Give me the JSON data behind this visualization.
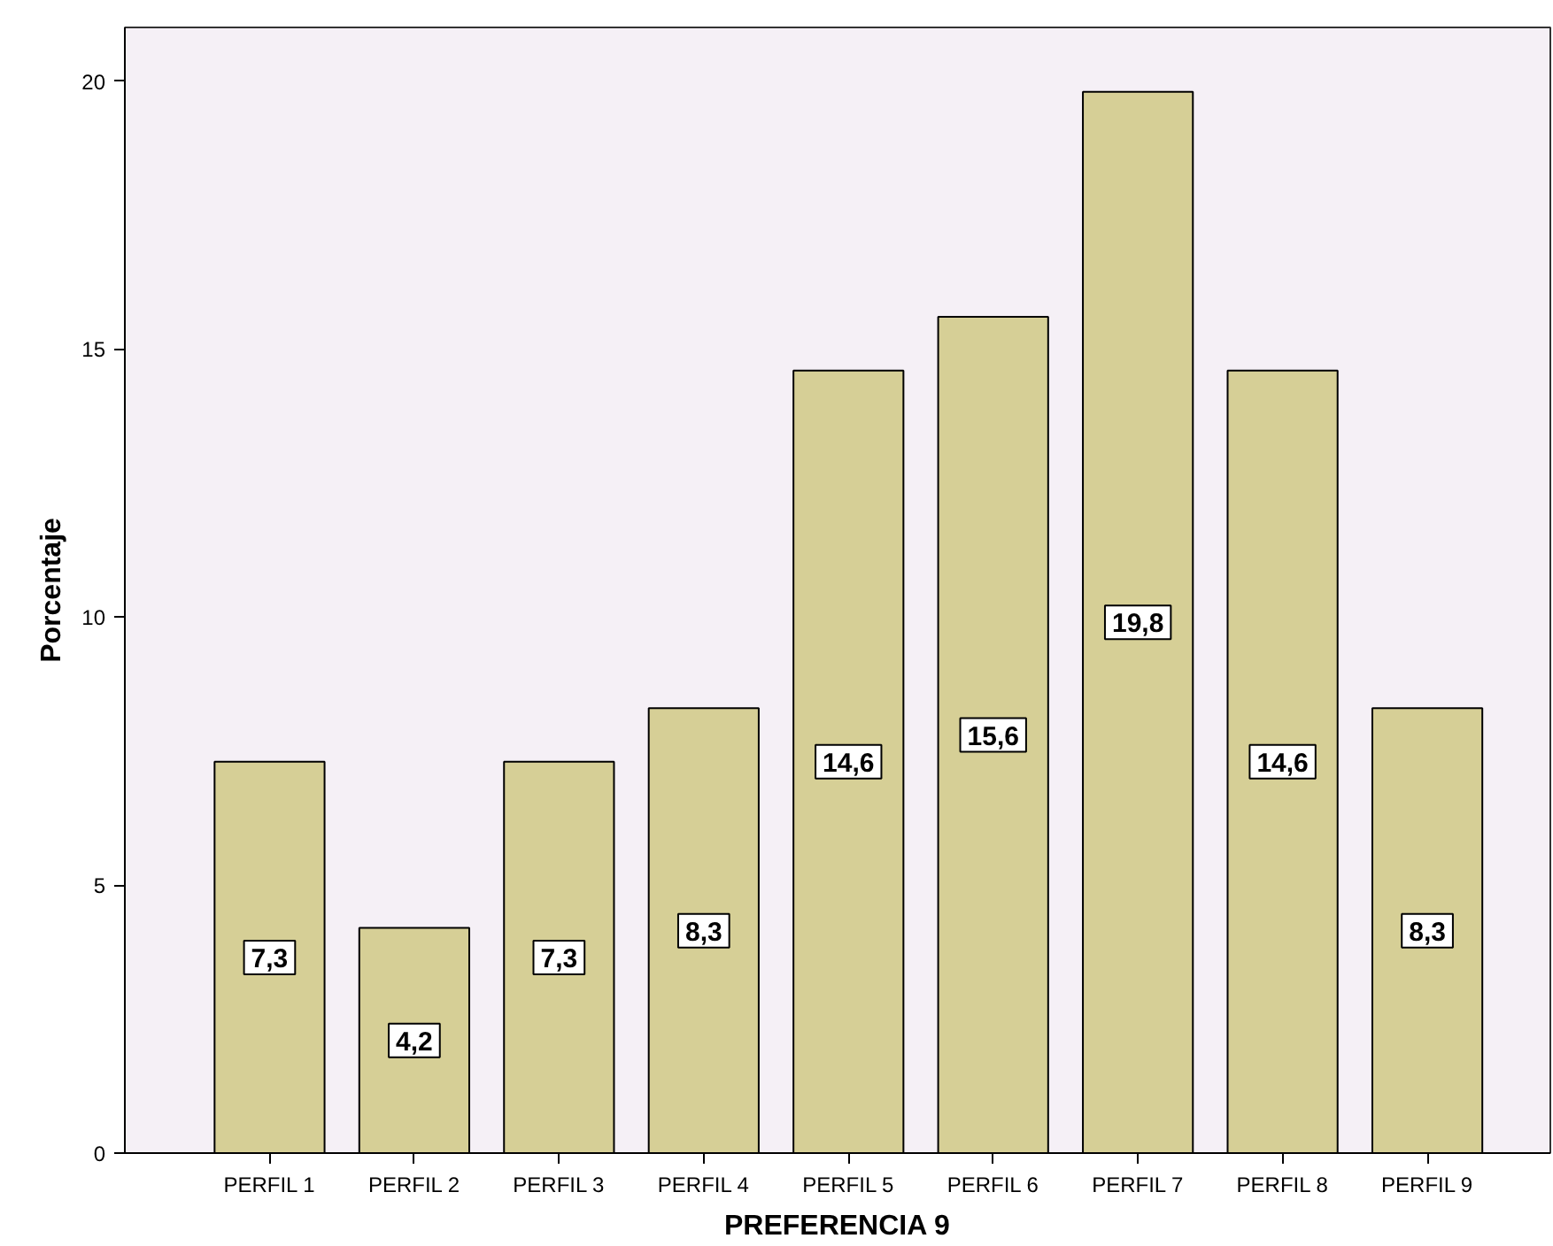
{
  "chart_data": {
    "type": "bar",
    "xlabel": "PREFERENCIA 9",
    "ylabel": "Porcentaje",
    "categories": [
      "PERFIL 1",
      "PERFIL 2",
      "PERFIL 3",
      "PERFIL 4",
      "PERFIL 5",
      "PERFIL 6",
      "PERFIL 7",
      "PERFIL 8",
      "PERFIL 9"
    ],
    "values": [
      7.3,
      4.2,
      7.3,
      8.3,
      14.6,
      15.6,
      19.8,
      14.6,
      8.3
    ],
    "value_labels": [
      "7,3",
      "4,2",
      "7,3",
      "8,3",
      "14,6",
      "15,6",
      "19,8",
      "14,6",
      "8,3"
    ],
    "color": "#d6cf96",
    "ylim": [
      0,
      21
    ],
    "yticks": [
      0,
      5,
      10,
      15,
      20
    ],
    "grid": false
  }
}
